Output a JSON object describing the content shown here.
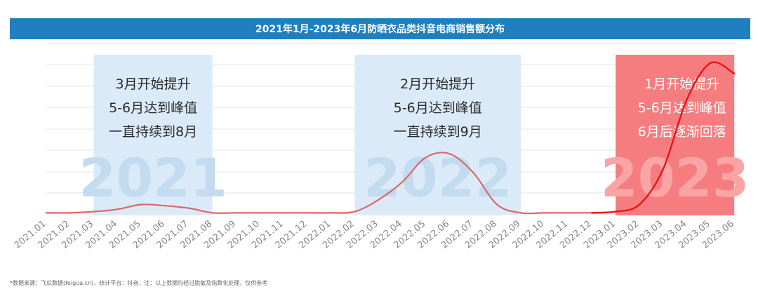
{
  "chart_data": {
    "type": "line",
    "title": "2021年1月-2023年6月防晒衣品类抖音电商销售额分布",
    "categories": [
      "2021.01",
      "2021.02",
      "2021.03",
      "2021.04",
      "2021.05",
      "2021.06",
      "2021.07",
      "2021.08",
      "2021.09",
      "2021.10",
      "2021.11",
      "2021.12",
      "2022.01",
      "2022.02",
      "2022.03",
      "2022.04",
      "2022.05",
      "2022.06",
      "2022.07",
      "2022.08",
      "2022.09",
      "2022.10",
      "2022.11",
      "2022.12",
      "2023.01",
      "2023.02",
      "2023.03",
      "2023.04",
      "2023.05",
      "2023.06"
    ],
    "series": [
      {
        "values": [
          1,
          1,
          2,
          4,
          8,
          7,
          5,
          1,
          1,
          1,
          1,
          1,
          1,
          2,
          12,
          27,
          48,
          51,
          35,
          8,
          1,
          1,
          1,
          1,
          2,
          8,
          38,
          97,
          128,
          119
        ]
      }
    ],
    "ylim": [
      0,
      135
    ],
    "grid": true,
    "highlights": [
      {
        "year": "2021",
        "lines": [
          "3月开始提升",
          "5-6月达到峰值",
          "一直持续到8月"
        ],
        "color": "#dbeaf8",
        "text_color": "#2a2a2a",
        "watermark_color": "#c2dbef",
        "start": "2021.03",
        "end": "2021.08"
      },
      {
        "year": "2022",
        "lines": [
          "2月开始提升",
          "5-6月达到峰值",
          "一直持续到9月"
        ],
        "color": "#dbeaf8",
        "text_color": "#2a2a2a",
        "watermark_color": "#c2dbef",
        "start": "2022.02",
        "end": "2022.09"
      },
      {
        "year": "2023",
        "lines": [
          "1月开始提升",
          "5-6月达到峰值",
          "6月后逐渐回落"
        ],
        "color": "#f57d7f",
        "text_color": "#ffffff",
        "watermark_color": "#f9a5a6",
        "start": "2023.01",
        "end": "2023.06"
      }
    ],
    "colors": {
      "title_bg": "#1f7fc1",
      "grid": "#e6e6e6",
      "line_2021_2022": "#d9686c",
      "line_2023": "#e8151a",
      "tick": "#888888"
    }
  },
  "footnote": "*数据来源：飞瓜数据(feigua.cn)，统计平台：抖音，注：以上数据均经过脱敏及指数化处理，仅供参考"
}
